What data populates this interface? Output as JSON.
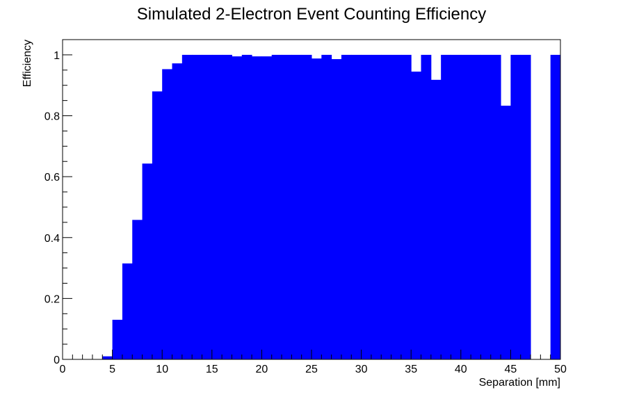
{
  "chart_data": {
    "type": "bar",
    "title": "Simulated 2-Electron Event Counting Efficiency",
    "xlabel": "Separation [mm]",
    "ylabel": "Efficiency",
    "xlim": [
      0,
      50
    ],
    "ylim": [
      0,
      1.05
    ],
    "bin_width": 1,
    "bin_starts": [
      0,
      1,
      2,
      3,
      4,
      5,
      6,
      7,
      8,
      9,
      10,
      11,
      12,
      13,
      14,
      15,
      16,
      17,
      18,
      19,
      20,
      21,
      22,
      23,
      24,
      25,
      26,
      27,
      28,
      29,
      30,
      31,
      32,
      33,
      34,
      35,
      36,
      37,
      38,
      39,
      40,
      41,
      42,
      43,
      44,
      45,
      46,
      47,
      48,
      49
    ],
    "values": [
      0,
      0,
      0,
      0,
      0.01,
      0.13,
      0.315,
      0.458,
      0.643,
      0.88,
      0.953,
      0.972,
      1,
      1,
      1,
      1,
      1,
      0.995,
      1,
      0.995,
      0.995,
      1,
      1,
      1,
      1,
      0.988,
      1,
      0.986,
      1,
      1,
      1,
      1,
      1,
      1,
      1,
      0.945,
      1,
      0.918,
      1,
      1,
      1,
      1,
      1,
      1,
      0.833,
      1,
      1,
      0,
      0,
      1
    ],
    "x_ticks": [
      0,
      5,
      10,
      15,
      20,
      25,
      30,
      35,
      40,
      45,
      50
    ],
    "x_tick_labels": [
      "0",
      "5",
      "10",
      "15",
      "20",
      "25",
      "30",
      "35",
      "40",
      "45",
      "50"
    ],
    "y_ticks": [
      0,
      0.2,
      0.4,
      0.6,
      0.8,
      1
    ],
    "y_tick_labels": [
      "0",
      "0.2",
      "0.4",
      "0.6",
      "0.8",
      "1"
    ],
    "bar_color": "#0000ff",
    "grid": false,
    "legend": "none"
  }
}
